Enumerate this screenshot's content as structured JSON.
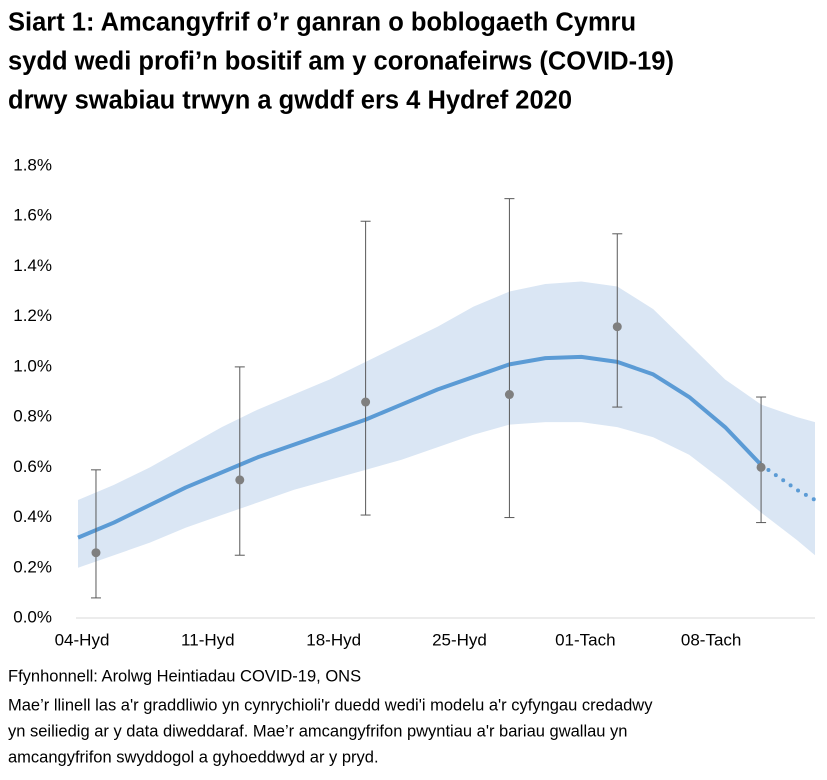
{
  "chart_data": {
    "type": "line",
    "title_lines": [
      "Siart 1: Amcangyfrif o’r ganran o boblogaeth Cymru",
      "sydd wedi profi’n bositif am y coronafeirws (COVID-19)",
      "drwy swabiau trwyn a gwddf ers 4 Hydref 2020"
    ],
    "x": [
      "04-Hyd",
      "06-Hyd",
      "08-Hyd",
      "10-Hyd",
      "12-Hyd",
      "14-Hyd",
      "16-Hyd",
      "18-Hyd",
      "20-Hyd",
      "22-Hyd",
      "24-Hyd",
      "26-Hyd",
      "28-Hyd",
      "30-Hyd",
      "01-Tach",
      "03-Tach",
      "05-Tach",
      "07-Tach",
      "09-Tach",
      "11-Tach",
      "13-Tach",
      "14-Tach"
    ],
    "series": [
      {
        "color": "#5b9bd5",
        "dashed": false,
        "values": [
          0.32,
          0.38,
          0.45,
          0.52,
          0.58,
          0.64,
          0.69,
          0.74,
          0.79,
          0.85,
          0.91,
          0.96,
          1.01,
          1.035,
          1.04,
          1.02,
          0.97,
          0.88,
          0.76,
          0.61,
          null,
          null
        ]
      },
      {
        "color": "#5b9bd5",
        "dashed": true,
        "values": [
          null,
          null,
          null,
          null,
          null,
          null,
          null,
          null,
          null,
          null,
          null,
          null,
          null,
          null,
          null,
          null,
          null,
          null,
          null,
          0.61,
          0.51,
          0.47
        ]
      }
    ],
    "band": {
      "color": "#dae6f4",
      "lower": [
        0.2,
        0.25,
        0.3,
        0.36,
        0.41,
        0.46,
        0.51,
        0.55,
        0.59,
        0.63,
        0.68,
        0.73,
        0.77,
        0.78,
        0.78,
        0.76,
        0.72,
        0.65,
        0.54,
        0.42,
        0.31,
        0.25
      ],
      "upper": [
        0.47,
        0.53,
        0.6,
        0.68,
        0.76,
        0.83,
        0.89,
        0.95,
        1.02,
        1.09,
        1.16,
        1.24,
        1.3,
        1.33,
        1.34,
        1.32,
        1.23,
        1.09,
        0.95,
        0.85,
        0.8,
        0.78
      ]
    },
    "points": {
      "color": "#7f7f7f",
      "x": [
        "05-Hyd",
        "13-Hyd",
        "20-Hyd",
        "28-Hyd",
        "03-Tach",
        "11-Tach"
      ],
      "values": [
        0.26,
        0.55,
        0.86,
        0.89,
        1.16,
        0.6
      ],
      "lower": [
        0.08,
        0.25,
        0.41,
        0.4,
        0.84,
        0.38
      ],
      "upper": [
        0.59,
        1.0,
        1.58,
        1.67,
        1.53,
        0.88
      ]
    },
    "xlim": [
      "04-Hyd",
      "14-Tach"
    ],
    "xticks": [
      "04-Hyd",
      "11-Hyd",
      "18-Hyd",
      "25-Hyd",
      "01-Tach",
      "08-Tach"
    ],
    "ylim": [
      0,
      1.8
    ],
    "yticks": [
      {
        "value": 0,
        "label": "0.0%"
      },
      {
        "value": 0.2,
        "label": "0.2%"
      },
      {
        "value": 0.4,
        "label": "0.4%"
      },
      {
        "value": 0.6,
        "label": "0.6%"
      },
      {
        "value": 0.8,
        "label": "0.8%"
      },
      {
        "value": 1.0,
        "label": "1.0%"
      },
      {
        "value": 1.2,
        "label": "1.2%"
      },
      {
        "value": 1.4,
        "label": "1.4%"
      },
      {
        "value": 1.6,
        "label": "1.6%"
      },
      {
        "value": 1.8,
        "label": "1.8%"
      }
    ],
    "source": "Ffynhonnell: Arolwg Heintiadau COVID-19, ONS",
    "note_lines": [
      "Mae’r llinell las a'r graddliwio yn cynrychioli'r duedd wedi'i modelu a'r cyfyngau credadwy",
      "yn seiliedig ar y data diweddaraf. Mae’r amcangyfrifon pwyntiau a'r bariau gwallau yn",
      "amcangyfrifon swyddogol a gyhoeddwyd ar y pryd."
    ]
  }
}
